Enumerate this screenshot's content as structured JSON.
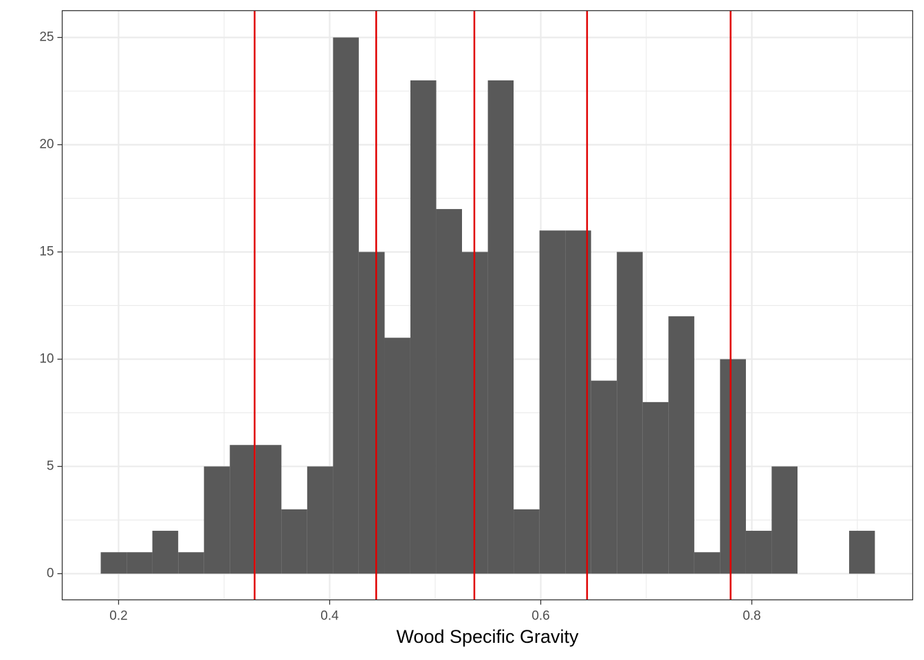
{
  "chart_data": {
    "type": "histogram",
    "xlabel": "Wood Specific Gravity",
    "bins": [
      0.1831,
      0.2076,
      0.232,
      0.2565,
      0.2809,
      0.3054,
      0.3298,
      0.3543,
      0.3787,
      0.4032,
      0.4276,
      0.4521,
      0.4765,
      0.501,
      0.5254,
      0.5499,
      0.5743,
      0.5988,
      0.6232,
      0.6477,
      0.6721,
      0.6966,
      0.721,
      0.7455,
      0.7699,
      0.7944,
      0.8188,
      0.8433,
      0.8677,
      0.8922,
      0.9166
    ],
    "counts": [
      1,
      1,
      2,
      1,
      5,
      6,
      6,
      3,
      5,
      25,
      15,
      11,
      23,
      17,
      15,
      23,
      3,
      16,
      16,
      9,
      15,
      8,
      12,
      1,
      10,
      2,
      5,
      0,
      0,
      2
    ],
    "color": "#595959",
    "vlines": {
      "values": [
        0.3289,
        0.4441,
        0.5371,
        0.6439,
        0.7799
      ],
      "color": "#e00000"
    },
    "xlim": [
      0.1466,
      0.9524
    ],
    "ylim": [
      -1.22,
      26.25
    ],
    "xticks": [
      0.2,
      0.4,
      0.6,
      0.8
    ],
    "yticks": [
      0,
      5,
      10,
      15,
      20,
      25
    ],
    "minor_xticks": [
      0.3,
      0.5,
      0.7,
      0.9
    ],
    "minor_yticks": [
      2.5,
      7.5,
      12.5,
      17.5,
      22.5
    ],
    "grid": true
  }
}
